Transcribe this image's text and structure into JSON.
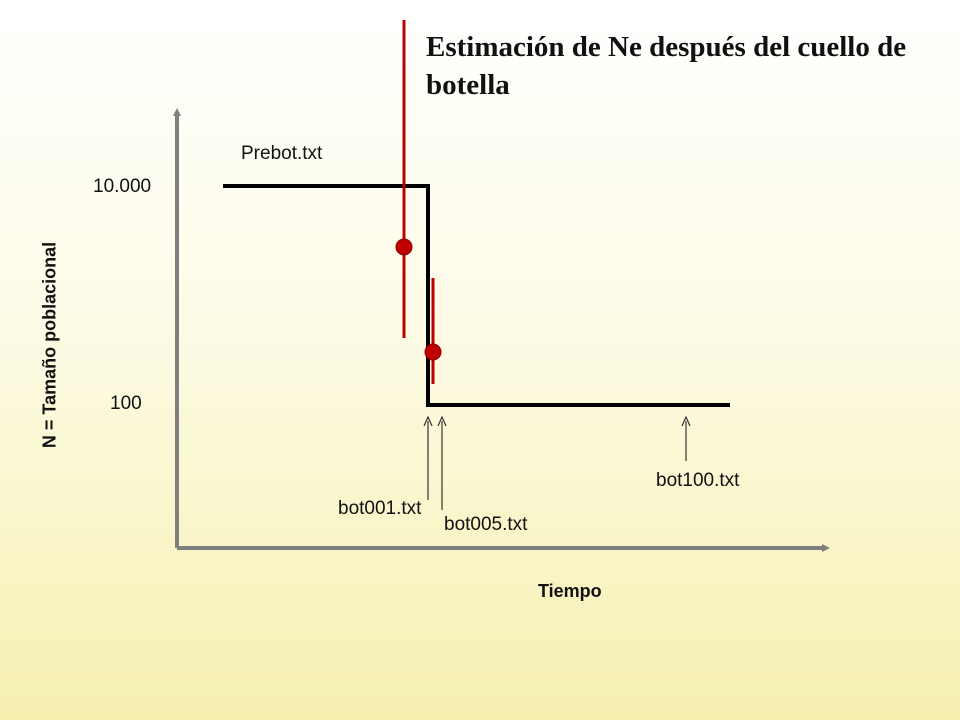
{
  "title": "Estimación de Ne después del cuello de botella",
  "axes": {
    "y_label": "N = Tamaño poblacional",
    "x_label": "Tiempo",
    "y_ticks": [
      "10.000",
      "100"
    ]
  },
  "labels": {
    "prebot": "Prebot.txt",
    "bot001": "bot001.txt",
    "bot005": "bot005.txt",
    "bot100": "bot100.txt"
  },
  "colors": {
    "axis": "#7f7f7f",
    "population_line": "#000000",
    "estimate": "#c00000"
  }
}
